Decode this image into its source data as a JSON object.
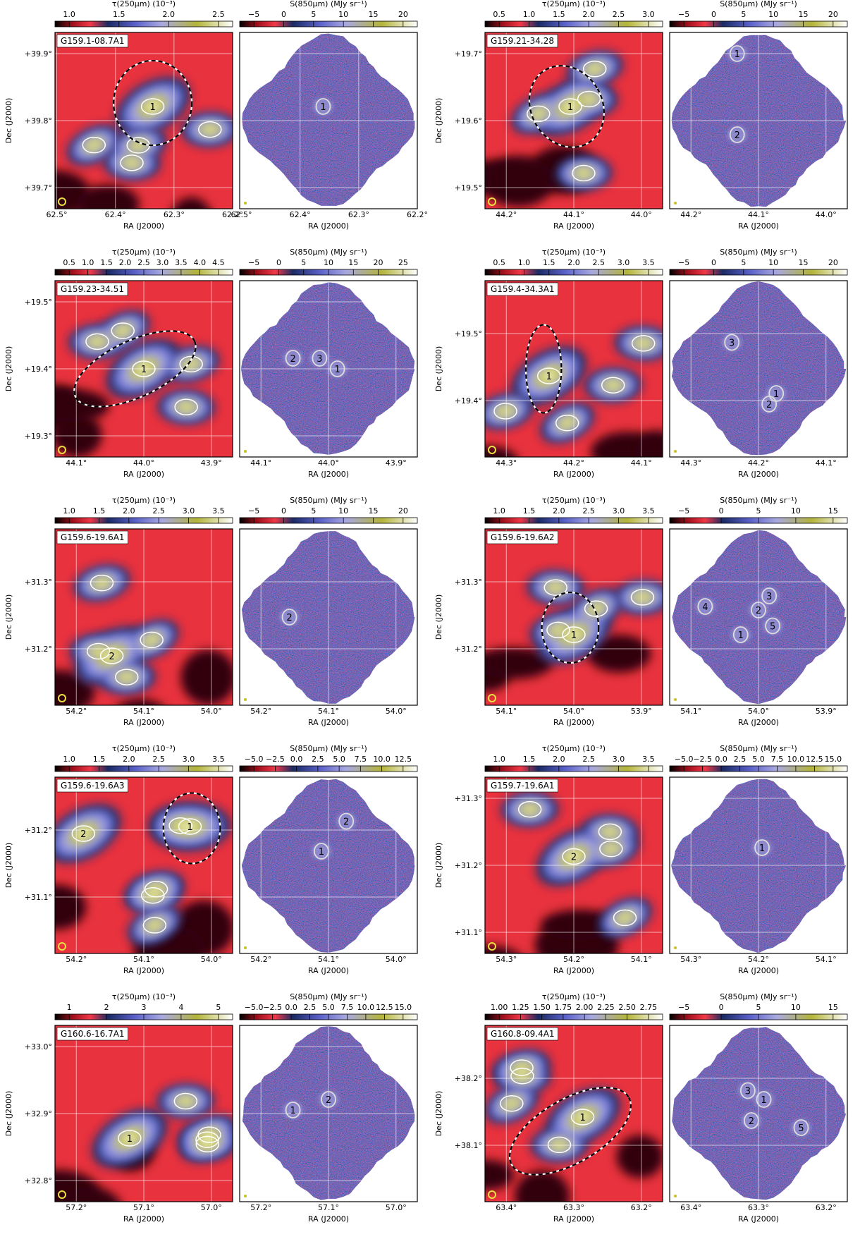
{
  "tau_label": "τ(250μm) (10⁻³)",
  "s_label": "S(850μm) (MJy sr⁻¹)",
  "ra_label": "RA (J2000)",
  "dec_label": "Dec (J2000)",
  "fields": [
    {
      "name": "G159.1-08.7A1",
      "tau_ticks": [
        "1.0",
        "1.5",
        "2.0",
        "2.5"
      ],
      "s_ticks": [
        "−5",
        "0",
        "5",
        "10",
        "15",
        "20"
      ],
      "dec_ticks": [
        "+39.9°",
        "+39.8°",
        "+39.7°"
      ],
      "ra_ticks": [
        "62.5°",
        "62.4°",
        "62.3°",
        "62.2°"
      ],
      "tau_clumps": [
        "1"
      ],
      "s_clumps": [
        "1"
      ]
    },
    {
      "name": "G159.21-34.28",
      "tau_ticks": [
        "0.5",
        "1.0",
        "1.5",
        "2.0",
        "2.5",
        "3.0"
      ],
      "s_ticks": [
        "−5",
        "0",
        "5",
        "10",
        "15",
        "20"
      ],
      "dec_ticks": [
        "+19.7°",
        "+19.6°",
        "+19.5°"
      ],
      "ra_ticks": [
        "44.2°",
        "44.1°",
        "44.0°"
      ],
      "tau_clumps": [
        "1"
      ],
      "s_clumps": [
        "1",
        "2"
      ]
    },
    {
      "name": "G159.23-34.51",
      "tau_ticks": [
        "0.5",
        "1.0",
        "1.5",
        "2.0",
        "2.5",
        "3.0",
        "3.5",
        "4.0",
        "4.5"
      ],
      "s_ticks": [
        "−5",
        "0",
        "5",
        "10",
        "15",
        "20",
        "25"
      ],
      "dec_ticks": [
        "+19.5°",
        "+19.4°",
        "+19.3°"
      ],
      "ra_ticks": [
        "44.1°",
        "44.0°",
        "43.9°"
      ],
      "tau_clumps": [
        "1"
      ],
      "s_clumps": [
        "2",
        "3",
        "1"
      ]
    },
    {
      "name": "G159.4-34.3A1",
      "tau_ticks": [
        "0.5",
        "1.0",
        "1.5",
        "2.0",
        "2.5",
        "3.0",
        "3.5"
      ],
      "s_ticks": [
        "−5",
        "0",
        "5",
        "10",
        "15",
        "20"
      ],
      "dec_ticks": [
        "+19.5°",
        "+19.4°"
      ],
      "ra_ticks": [
        "44.3°",
        "44.2°",
        "44.1°"
      ],
      "tau_clumps": [
        "1"
      ],
      "s_clumps": [
        "3",
        "1",
        "2"
      ]
    },
    {
      "name": "G159.6-19.6A1",
      "tau_ticks": [
        "1.0",
        "1.5",
        "2.0",
        "2.5",
        "3.0",
        "3.5"
      ],
      "s_ticks": [
        "−5",
        "0",
        "5",
        "10",
        "15",
        "20"
      ],
      "dec_ticks": [
        "+31.3°",
        "+31.2°"
      ],
      "ra_ticks": [
        "54.2°",
        "54.1°",
        "54.0°"
      ],
      "tau_clumps": [
        "2"
      ],
      "s_clumps": [
        "2"
      ]
    },
    {
      "name": "G159.6-19.6A2",
      "tau_ticks": [
        "1.0",
        "1.5",
        "2.0",
        "2.5",
        "3.0",
        "3.5"
      ],
      "s_ticks": [
        "−5",
        "0",
        "5",
        "10",
        "15"
      ],
      "dec_ticks": [
        "+31.3°",
        "+31.2°"
      ],
      "ra_ticks": [
        "54.1°",
        "54.0°",
        "53.9°"
      ],
      "tau_clumps": [
        "1"
      ],
      "s_clumps": [
        "4",
        "3",
        "2",
        "5",
        "1"
      ]
    },
    {
      "name": "G159.6-19.6A3",
      "tau_ticks": [
        "1.0",
        "1.5",
        "2.0",
        "2.5",
        "3.0",
        "3.5"
      ],
      "s_ticks": [
        "−5.0",
        "−2.5",
        "0.0",
        "2.5",
        "5.0",
        "7.5",
        "10.0",
        "12.5"
      ],
      "dec_ticks": [
        "+31.2°",
        "+31.1°"
      ],
      "ra_ticks": [
        "54.2°",
        "54.1°",
        "54.0°"
      ],
      "tau_clumps": [
        "2",
        "1"
      ],
      "s_clumps": [
        "2",
        "1"
      ]
    },
    {
      "name": "G159.7-19.6A1",
      "tau_ticks": [
        "1.0",
        "1.5",
        "2.0",
        "2.5",
        "3.0",
        "3.5"
      ],
      "s_ticks": [
        "−5.0",
        "−2.5",
        "0.0",
        "2.5",
        "5.0",
        "7.5",
        "10.0",
        "12.5",
        "15.0"
      ],
      "dec_ticks": [
        "+31.3°",
        "+31.2°",
        "+31.1°"
      ],
      "ra_ticks": [
        "54.3°",
        "54.2°",
        "54.1°"
      ],
      "tau_clumps": [
        "2"
      ],
      "s_clumps": [
        "1"
      ]
    },
    {
      "name": "G160.6-16.7A1",
      "tau_ticks": [
        "1",
        "2",
        "3",
        "4",
        "5"
      ],
      "s_ticks": [
        "−5.0",
        "−2.5",
        "0.0",
        "2.5",
        "5.0",
        "7.5",
        "10.0",
        "12.5",
        "15.0"
      ],
      "dec_ticks": [
        "+33.0°",
        "+32.9°",
        "+32.8°"
      ],
      "ra_ticks": [
        "57.2°",
        "57.1°",
        "57.0°"
      ],
      "tau_clumps": [
        "1"
      ],
      "s_clumps": [
        "1",
        "2"
      ]
    },
    {
      "name": "G160.8-09.4A1",
      "tau_ticks": [
        "1.00",
        "1.25",
        "1.50",
        "1.75",
        "2.00",
        "2.25",
        "2.50",
        "2.75"
      ],
      "s_ticks": [
        "−5",
        "0",
        "5",
        "10",
        "15"
      ],
      "dec_ticks": [
        "+38.2°",
        "+38.1°"
      ],
      "ra_ticks": [
        "63.4°",
        "63.3°",
        "63.2°"
      ],
      "tau_clumps": [
        "1"
      ],
      "s_clumps": [
        "3",
        "1",
        "2",
        "5"
      ]
    }
  ]
}
